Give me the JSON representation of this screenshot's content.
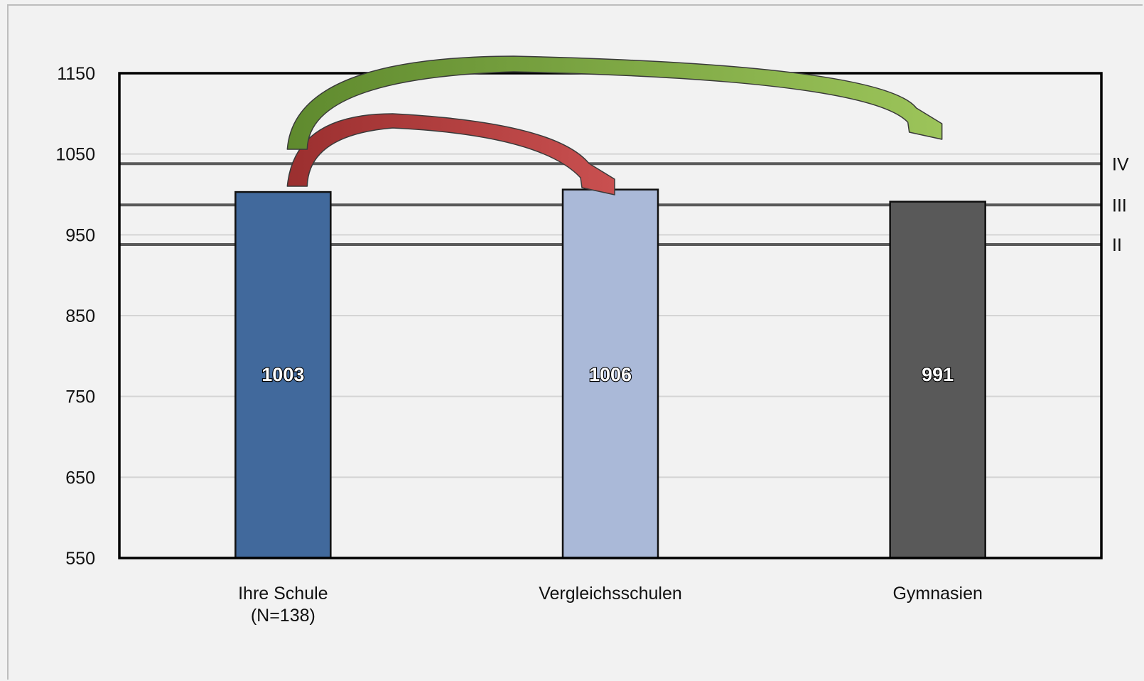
{
  "chart_data": {
    "type": "bar",
    "title": "",
    "xlabel": "",
    "ylabel": "",
    "ylim": [
      550,
      1150
    ],
    "yticks": [
      550,
      650,
      750,
      850,
      950,
      1050,
      1150
    ],
    "grid": true,
    "categories": [
      [
        "Ihre Schule",
        "(N=138)"
      ],
      [
        "Vergleichsschulen"
      ],
      [
        "Gymnasien"
      ]
    ],
    "values": [
      1003,
      1006,
      991
    ],
    "value_labels": [
      "1003",
      "1006",
      "991"
    ],
    "bar_colors": [
      "#41699c",
      "#aab9d8",
      "#595959"
    ],
    "reference_lines": [
      {
        "label": "IV",
        "value": 1038
      },
      {
        "label": "III",
        "value": 987
      },
      {
        "label": "II",
        "value": 938
      }
    ],
    "arrows": [
      {
        "from_category": 0,
        "to_category": 1,
        "color": "#b03a3a"
      },
      {
        "from_category": 0,
        "to_category": 2,
        "color": "#7aa83c"
      }
    ]
  }
}
